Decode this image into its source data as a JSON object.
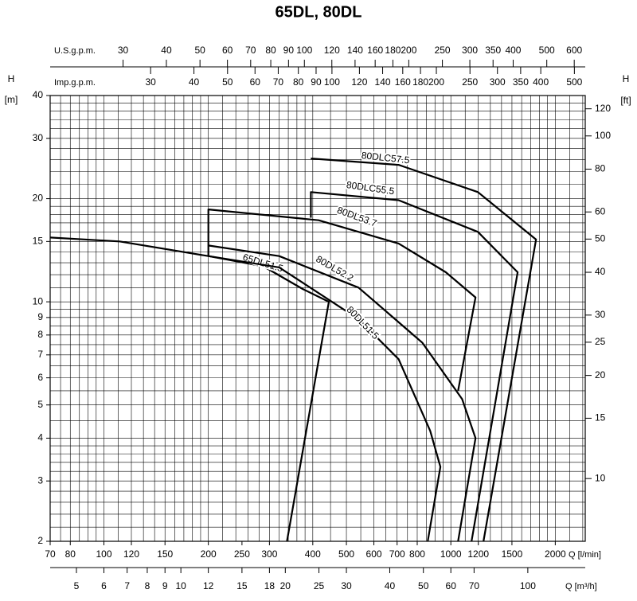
{
  "chart_data": {
    "type": "line",
    "title": "65DL, 80DL",
    "xscale": "log",
    "yscale": "log",
    "grid": true,
    "xlabel": "Q [l/min]",
    "xlim": [
      70,
      2440
    ],
    "xticks": [
      70,
      80,
      100,
      120,
      150,
      200,
      250,
      300,
      400,
      500,
      600,
      700,
      800,
      1000,
      1200,
      1500,
      2000
    ],
    "x2label": "Q [m³/h]",
    "x2lim": [
      4.2,
      146.4
    ],
    "x2ticks": [
      5,
      6,
      7,
      8,
      9,
      10,
      12,
      15,
      18,
      20,
      25,
      30,
      40,
      50,
      60,
      70,
      100
    ],
    "x3label": "U.S.g.p.m.",
    "x3lim": [
      18.49,
      645.5
    ],
    "x3ticks": [
      30,
      40,
      50,
      60,
      70,
      80,
      90,
      100,
      120,
      140,
      160,
      180,
      200,
      250,
      300,
      350,
      400,
      500,
      600
    ],
    "x4label": "Imp.g.p.m.",
    "x4lim": [
      15.4,
      537.4
    ],
    "x4ticks": [
      30,
      40,
      50,
      60,
      70,
      80,
      90,
      100,
      120,
      140,
      160,
      180,
      200,
      250,
      300,
      350,
      400,
      500
    ],
    "ylabel": "H",
    "yunit": "[m]",
    "ylim": [
      2,
      40
    ],
    "yticks": [
      2,
      3,
      4,
      5,
      6,
      7,
      8,
      9,
      10,
      15,
      20,
      30,
      40
    ],
    "y2label": "H",
    "y2unit": "[ft]",
    "y2lim": [
      6.56,
      131.2
    ],
    "y2ticks": [
      10,
      15,
      20,
      25,
      30,
      40,
      50,
      60,
      80,
      100,
      120
    ],
    "xgrid": [
      70,
      75,
      80,
      85,
      90,
      95,
      100,
      110,
      120,
      130,
      140,
      150,
      160,
      170,
      180,
      190,
      200,
      220,
      240,
      260,
      280,
      300,
      320,
      340,
      360,
      380,
      400,
      450,
      500,
      550,
      600,
      650,
      700,
      750,
      800,
      850,
      900,
      950,
      1000,
      1100,
      1200,
      1300,
      1400,
      1500,
      1600,
      1700,
      1800,
      1900,
      2000,
      2200,
      2400
    ],
    "ygrid": [
      2,
      2.2,
      2.4,
      2.6,
      2.8,
      3,
      3.2,
      3.4,
      3.6,
      3.8,
      4,
      4.5,
      5,
      5.5,
      6,
      6.5,
      7,
      7.5,
      8,
      8.5,
      9,
      9.5,
      10,
      11,
      12,
      13,
      14,
      15,
      16,
      17,
      18,
      19,
      20,
      22,
      24,
      26,
      28,
      30,
      32,
      34,
      36,
      38,
      40
    ],
    "series": [
      {
        "name": "65DL51.5",
        "color": "#000000",
        "x": [
          70,
          111,
          200,
          288,
          374,
          445,
          337
        ],
        "values": [
          15.4,
          15.0,
          13.6,
          12.7,
          10.9,
          10,
          2
        ]
      },
      {
        "name": "80DL51.5",
        "color": "#000000",
        "x": [
          200,
          320,
          542,
          707,
          872,
          933,
          858
        ],
        "values": [
          13.6,
          12.6,
          8.9,
          6.8,
          4.2,
          3.3,
          2
        ]
      },
      {
        "name": "80DL52.2",
        "color": "#000000",
        "x": [
          200,
          320,
          542,
          827,
          1078,
          1178,
          1049
        ],
        "values": [
          14.6,
          13.6,
          11.0,
          7.6,
          5.2,
          4.0,
          2
        ]
      },
      {
        "name": "80DL53.7",
        "color": "#000000",
        "x": [
          200,
          200,
          416,
          707,
          967,
          1178,
          1049
        ],
        "values": [
          13.6,
          18.6,
          17.3,
          14.8,
          12.2,
          10.3,
          5.5
        ]
      },
      {
        "name": "80DLC55.5",
        "color": "#000000",
        "x": [
          395,
          395,
          707,
          1197,
          1558,
          1147
        ],
        "values": [
          17.6,
          20.9,
          19.8,
          16.0,
          12.2,
          2
        ]
      },
      {
        "name": "80DLC57.5",
        "color": "#000000",
        "x": [
          395,
          707,
          1197,
          1760,
          1242
        ],
        "values": [
          26.2,
          25.1,
          20.9,
          15.2,
          2
        ]
      }
    ]
  }
}
